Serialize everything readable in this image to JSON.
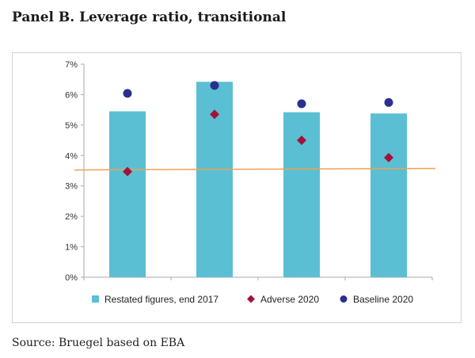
{
  "page": {
    "title": "Panel B. Leverage ratio, transitional",
    "source": "Source: Bruegel based on EBA"
  },
  "chart_data": {
    "type": "bar",
    "categories": [
      "",
      "",
      "",
      ""
    ],
    "series": [
      {
        "name": "Restated figures, end 2017",
        "kind": "bar",
        "color": "#5bbfd4",
        "values": [
          5.45,
          6.42,
          5.42,
          5.38
        ]
      },
      {
        "name": "Adverse 2020",
        "kind": "marker",
        "marker": "diamond",
        "color": "#a3123a",
        "values": [
          3.47,
          5.35,
          4.5,
          3.93
        ]
      },
      {
        "name": "Baseline 2020",
        "kind": "marker",
        "marker": "circle",
        "color": "#2a2f8f",
        "values": [
          6.04,
          6.3,
          5.7,
          5.74
        ]
      }
    ],
    "reference_line": {
      "value": 3.55,
      "color": "#f0a050"
    },
    "ylim": [
      0,
      7
    ],
    "yticks": [
      "0%",
      "1%",
      "2%",
      "3%",
      "4%",
      "5%",
      "6%",
      "7%"
    ],
    "legend_position": "bottom",
    "grid": false
  }
}
